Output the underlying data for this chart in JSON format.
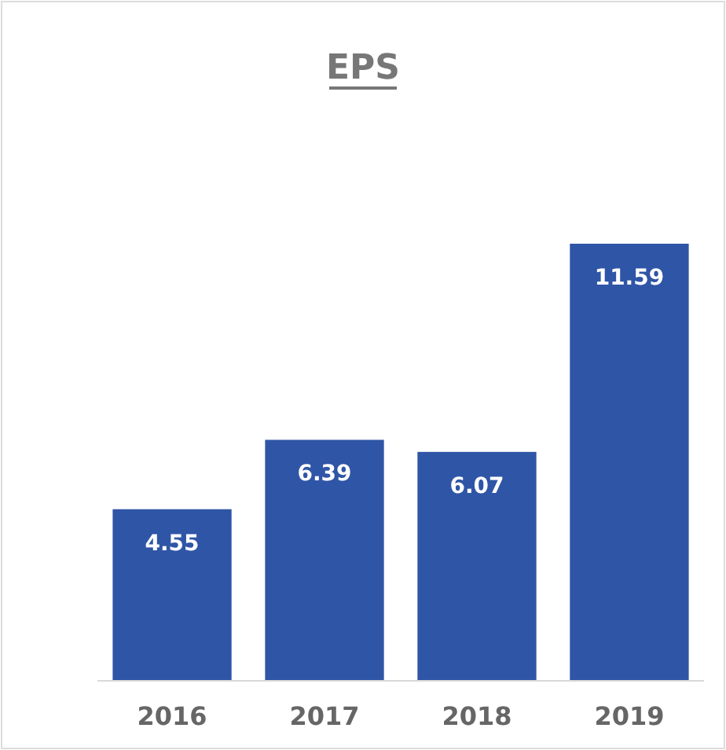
{
  "chart_data": {
    "type": "bar",
    "title": "EPS",
    "categories": [
      "2016",
      "2017",
      "2018",
      "2019"
    ],
    "values": [
      4.55,
      6.39,
      6.07,
      11.59
    ],
    "color": "#2f55a6",
    "data_labels": true
  }
}
